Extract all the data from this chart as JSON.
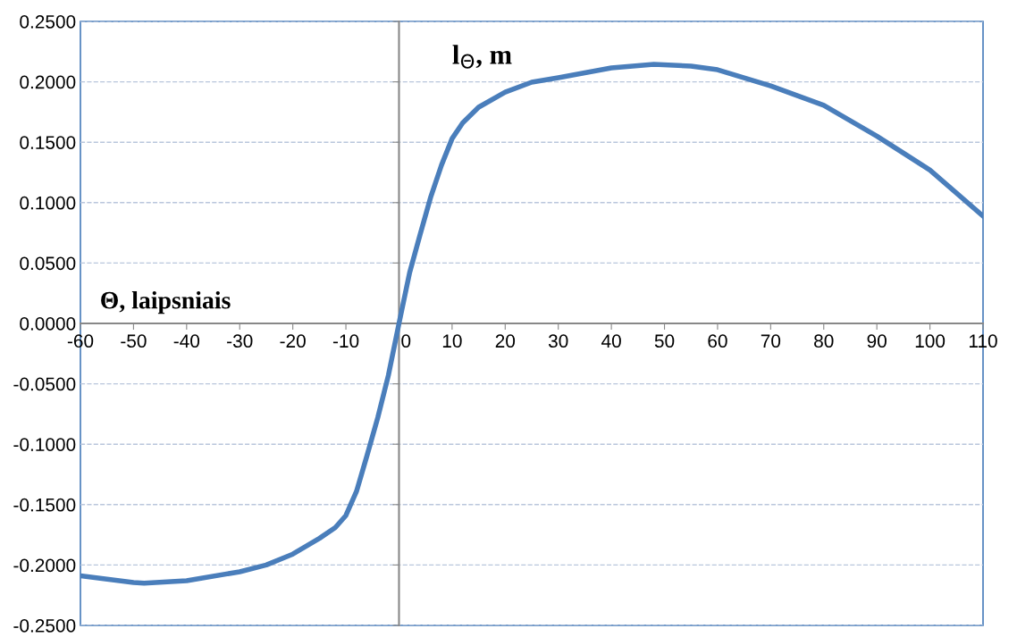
{
  "chart_data": {
    "type": "line",
    "xlabel": "Θ, laipsniais",
    "ylabel": "l$_{Θ}$, m",
    "x": [
      -60,
      -50,
      -48,
      -40,
      -30,
      -25,
      -20,
      -15,
      -12,
      -10,
      -8,
      -6,
      -4,
      -2,
      0,
      2,
      4,
      6,
      8,
      10,
      12,
      15,
      20,
      25,
      30,
      40,
      48,
      55,
      60,
      70,
      80,
      90,
      100,
      110
    ],
    "series": [
      {
        "color": "#4a7ebb",
        "values": [
          -0.209,
          -0.2145,
          -0.215,
          -0.213,
          -0.2056,
          -0.2,
          -0.191,
          -0.178,
          -0.169,
          -0.159,
          -0.139,
          -0.109,
          -0.078,
          -0.043,
          0,
          0.042,
          0.074,
          0.105,
          0.131,
          0.153,
          0.166,
          0.179,
          0.1915,
          0.1997,
          0.2034,
          0.2115,
          0.2145,
          0.213,
          0.21,
          0.1967,
          0.1805,
          0.155,
          0.127,
          0.0888
        ]
      }
    ],
    "xlim": [
      -60,
      110
    ],
    "xticks": [
      -60,
      -50,
      -40,
      -30,
      -20,
      -10,
      0,
      10,
      20,
      30,
      40,
      50,
      60,
      70,
      80,
      90,
      100,
      110
    ],
    "ylim": [
      -0.25,
      0.25
    ],
    "yticks": [
      {
        "value": -0.25,
        "label": "-0.2500"
      },
      {
        "value": -0.2,
        "label": "-0.2000"
      },
      {
        "value": -0.15,
        "label": "-0.1500"
      },
      {
        "value": -0.1,
        "label": "-0.1000"
      },
      {
        "value": -0.05,
        "label": "-0.0500"
      },
      {
        "value": 0,
        "label": "0.0000"
      },
      {
        "value": 0.05,
        "label": "0.0500"
      },
      {
        "value": 0.1,
        "label": "0.1000"
      },
      {
        "value": 0.15,
        "label": "0.1500"
      },
      {
        "value": 0.2,
        "label": "0.2000"
      },
      {
        "value": 0.25,
        "label": "0.2500"
      }
    ],
    "grid": "y",
    "line_style": "solid",
    "marker": "none"
  }
}
